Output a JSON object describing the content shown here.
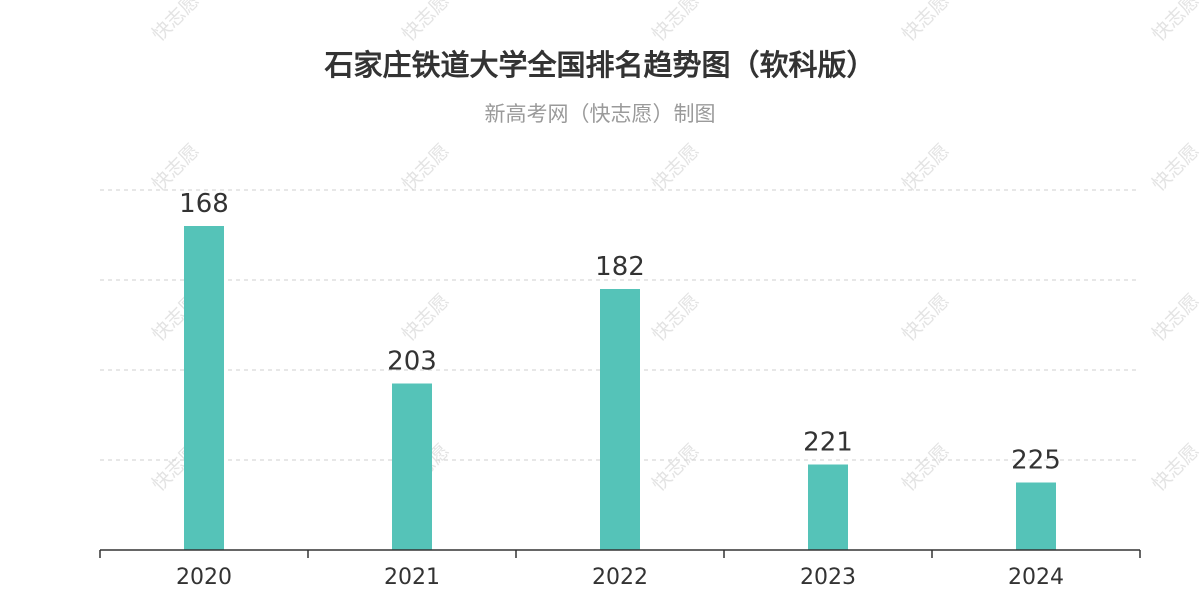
{
  "chart_data": {
    "type": "bar",
    "title": "石家庄铁道大学全国排名趋势图（软科版）",
    "subtitle": "新高考网（快志愿）制图",
    "categories": [
      "2020",
      "2021",
      "2022",
      "2023",
      "2024"
    ],
    "values": [
      168,
      203,
      182,
      221,
      225
    ],
    "axis_inverted": true,
    "xlabel": "",
    "ylabel": "",
    "ylim": [
      160,
      240
    ],
    "grid": true,
    "legend": "none",
    "bar_color": "#55c3b8",
    "data_labels": true
  },
  "watermark": {
    "text": "快志愿",
    "color": "#cccccc"
  }
}
